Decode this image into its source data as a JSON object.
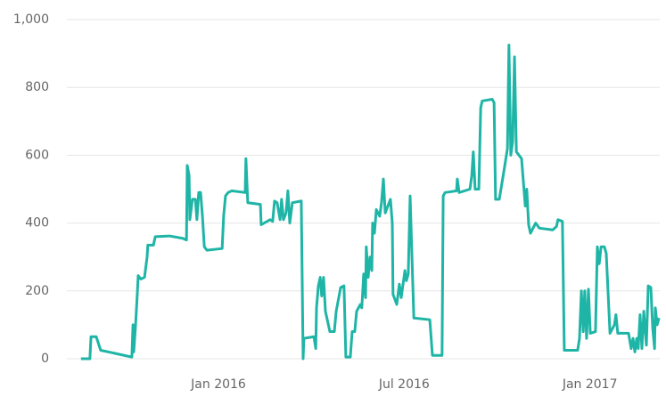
{
  "chart_data": {
    "type": "line",
    "color": "#1fb5a6",
    "grid": true,
    "xlim": [
      2015.592,
      2017.188
    ],
    "xticks": [
      {
        "value": 2016,
        "label": "Jan 2016"
      },
      {
        "value": 2016.5,
        "label": "Jul 2016"
      },
      {
        "value": 2017,
        "label": "Jan 2017"
      }
    ],
    "ylim": [
      0,
      1000
    ],
    "yticks": [
      0,
      200,
      400,
      600,
      800,
      {
        "value": 1000,
        "label": "1,000"
      }
    ],
    "x": [
      2015.63,
      2015.654,
      2015.657,
      2015.671,
      2015.683,
      2015.767,
      2015.77,
      2015.772,
      2015.777,
      2015.782,
      2015.784,
      2015.791,
      2015.801,
      2015.808,
      2015.81,
      2015.825,
      2015.83,
      2015.868,
      2015.904,
      2015.914,
      2015.916,
      2015.921,
      2015.923,
      2015.93,
      2015.938,
      2015.942,
      2015.947,
      2015.952,
      2015.957,
      2015.962,
      2015.969,
      2016.01,
      2016.014,
      2016.019,
      2016.026,
      2016.036,
      2016.072,
      2016.074,
      2016.079,
      2016.113,
      2016.115,
      2016.139,
      2016.146,
      2016.151,
      2016.158,
      2016.166,
      2016.17,
      2016.175,
      2016.182,
      2016.187,
      2016.192,
      2016.199,
      2016.223,
      2016.228,
      2016.23,
      2016.257,
      2016.262,
      2016.264,
      2016.269,
      2016.274,
      2016.278,
      2016.283,
      2016.288,
      2016.3,
      2016.312,
      2016.317,
      2016.329,
      2016.338,
      2016.343,
      2016.355,
      2016.36,
      2016.367,
      2016.372,
      2016.382,
      2016.386,
      2016.391,
      2016.396,
      2016.398,
      2016.403,
      2016.408,
      2016.413,
      2016.415,
      2016.42,
      2016.425,
      2016.434,
      2016.439,
      2016.444,
      2016.449,
      2016.463,
      2016.468,
      2016.47,
      2016.48,
      2016.487,
      2016.492,
      2016.502,
      2016.506,
      2016.511,
      2016.516,
      2016.521,
      2016.526,
      2016.569,
      2016.576,
      2016.602,
      2016.605,
      2016.61,
      2016.641,
      2016.643,
      2016.648,
      2016.677,
      2016.682,
      2016.686,
      2016.691,
      2016.701,
      2016.706,
      2016.71,
      2016.737,
      2016.742,
      2016.746,
      2016.756,
      2016.768,
      2016.778,
      2016.782,
      2016.787,
      2016.792,
      2016.797,
      2016.802,
      2016.816,
      2016.826,
      2016.83,
      2016.835,
      2016.84,
      2016.854,
      2016.864,
      2016.9,
      2016.91,
      2016.914,
      2016.926,
      2016.931,
      2016.967,
      2016.972,
      2016.977,
      2016.982,
      2016.986,
      2016.991,
      2016.996,
      2017.001,
      2017.015,
      2017.02,
      2017.025,
      2017.03,
      2017.039,
      2017.044,
      2017.054,
      2017.066,
      2017.07,
      2017.075,
      2017.104,
      2017.111,
      2017.116,
      2017.121,
      2017.126,
      2017.13,
      2017.135,
      2017.14,
      2017.145,
      2017.152,
      2017.157,
      2017.164,
      2017.169,
      2017.174,
      2017.176,
      2017.181,
      2017.186
    ],
    "values": [
      0,
      0,
      65,
      65,
      25,
      5,
      100,
      20,
      100,
      200,
      245,
      235,
      240,
      300,
      335,
      335,
      360,
      362,
      355,
      350,
      570,
      540,
      410,
      470,
      470,
      410,
      490,
      490,
      420,
      330,
      320,
      325,
      420,
      480,
      490,
      495,
      490,
      590,
      460,
      455,
      395,
      410,
      405,
      465,
      460,
      410,
      470,
      410,
      430,
      495,
      400,
      460,
      465,
      0,
      60,
      65,
      30,
      150,
      215,
      240,
      185,
      240,
      140,
      80,
      80,
      140,
      210,
      215,
      5,
      5,
      80,
      80,
      140,
      160,
      150,
      250,
      180,
      330,
      240,
      300,
      260,
      400,
      370,
      440,
      420,
      460,
      530,
      430,
      470,
      400,
      190,
      160,
      220,
      180,
      260,
      230,
      250,
      480,
      300,
      120,
      115,
      10,
      10,
      480,
      490,
      495,
      530,
      490,
      500,
      540,
      610,
      500,
      500,
      740,
      760,
      765,
      755,
      470,
      470,
      550,
      620,
      925,
      600,
      640,
      890,
      610,
      590,
      450,
      500,
      395,
      370,
      400,
      385,
      380,
      390,
      410,
      405,
      25,
      25,
      60,
      200,
      80,
      200,
      60,
      205,
      75,
      80,
      330,
      280,
      330,
      330,
      310,
      75,
      100,
      130,
      75,
      75,
      30,
      60,
      20,
      60,
      30,
      130,
      30,
      140,
      40,
      215,
      210,
      90,
      30,
      150,
      100,
      120
    ]
  }
}
